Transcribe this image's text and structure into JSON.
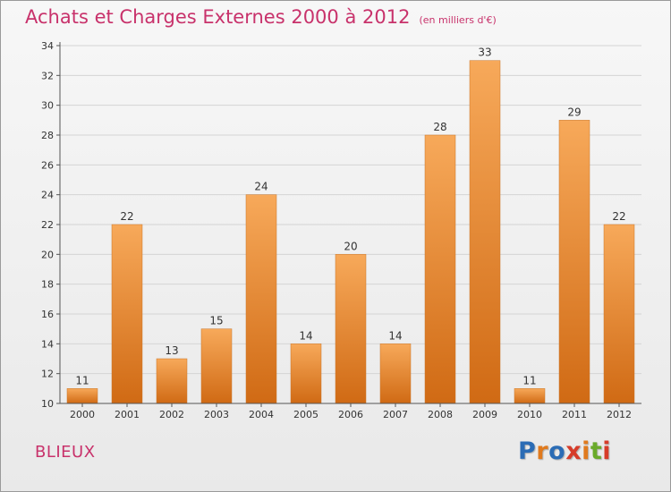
{
  "title": "Achats et Charges Externes 2000 à 2012",
  "subtitle": "(en milliers d'€)",
  "commune": "BLIEUX",
  "logo": {
    "letters": [
      "P",
      "r",
      "o",
      "x",
      "i",
      "t",
      "i"
    ],
    "colors": [
      "#2b6cb5",
      "#e07a1e",
      "#2b6cb5",
      "#d63c2a",
      "#e07a1e",
      "#6aaa2a",
      "#d63c2a"
    ]
  },
  "colors": {
    "bar_top": "#f7a95a",
    "bar_bottom": "#d06a14",
    "title": "#c8326b"
  },
  "chart_data": {
    "type": "bar",
    "title": "Achats et Charges Externes 2000 à 2012",
    "categories": [
      "2000",
      "2001",
      "2002",
      "2003",
      "2004",
      "2005",
      "2006",
      "2007",
      "2008",
      "2009",
      "2010",
      "2011",
      "2012"
    ],
    "values": [
      11,
      22,
      13,
      15,
      24,
      14,
      20,
      14,
      28,
      33,
      11,
      29,
      22
    ],
    "xlabel": "",
    "ylabel": "",
    "ylim": [
      10,
      34
    ],
    "yticks": [
      10,
      12,
      14,
      16,
      18,
      20,
      22,
      24,
      26,
      28,
      30,
      32,
      34
    ],
    "grid": true
  }
}
